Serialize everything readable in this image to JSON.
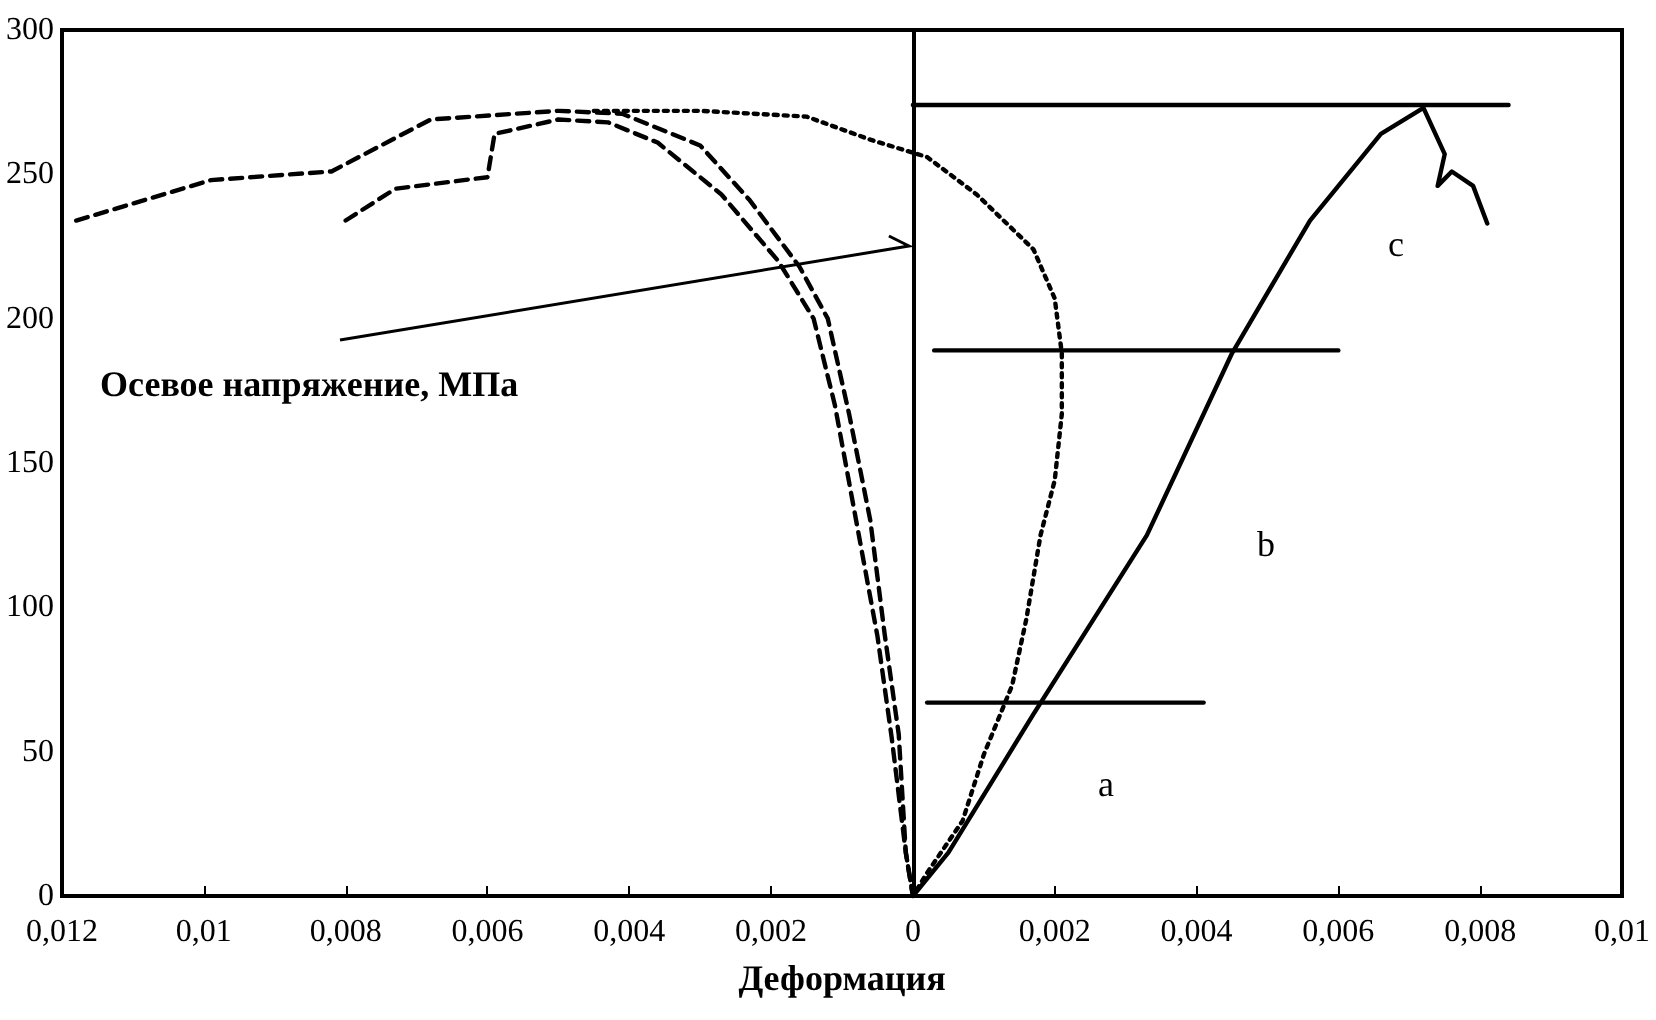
{
  "chart_data": {
    "type": "line",
    "xlabel": "Деформация",
    "ylabel": "Осевое напряжение, МПа",
    "xlim": [
      -0.012,
      0.01
    ],
    "ylim": [
      0,
      300
    ],
    "xticks": [
      {
        "value": -0.012,
        "label": "0,012"
      },
      {
        "value": -0.01,
        "label": "0,01"
      },
      {
        "value": -0.008,
        "label": "0,008"
      },
      {
        "value": -0.006,
        "label": "0,006"
      },
      {
        "value": -0.004,
        "label": "0,004"
      },
      {
        "value": -0.002,
        "label": "0,002"
      },
      0,
      {
        "value": 0.002,
        "label": "0,002"
      },
      {
        "value": 0.004,
        "label": "0,004"
      },
      {
        "value": 0.006,
        "label": "0,006"
      },
      {
        "value": 0.008,
        "label": "0,008"
      },
      {
        "value": 0.01,
        "label": "0,01"
      }
    ],
    "yticks": [
      0,
      50,
      100,
      150,
      200,
      250,
      300
    ],
    "grid": false,
    "marker": "none",
    "series": [
      {
        "color": "#000000",
        "line_style": "dashed",
        "x": [
          -0.0118,
          -0.0099,
          -0.0082,
          -0.0068,
          -0.005,
          -0.0041,
          -0.003,
          -0.0023,
          -0.0016,
          -0.0012,
          -0.0009,
          -0.0006,
          -0.0004,
          -0.0002,
          -0.0001,
          0
        ],
        "values": [
          234,
          248,
          251,
          269,
          272,
          271,
          260,
          241,
          218,
          200,
          167,
          130,
          91,
          56,
          15,
          0
        ]
      },
      {
        "color": "#000000",
        "line_style": "dashed",
        "x": [
          -0.008,
          -0.0073,
          -0.006,
          -0.0059,
          -0.005,
          -0.0043,
          -0.0036,
          -0.0027,
          -0.0019,
          -0.0014,
          -0.0011,
          -0.0008,
          -0.0005,
          -0.0003,
          -0.0001,
          0
        ],
        "values": [
          234,
          245,
          249,
          264,
          269,
          268,
          261,
          243,
          220,
          200,
          170,
          130,
          90,
          55,
          15,
          0
        ]
      },
      {
        "color": "#000000",
        "line_style": "dotted",
        "x": [
          -0.0045,
          -0.003,
          -0.0015,
          -0.0006,
          0.0002,
          0.0009,
          0.0017,
          0.002,
          0.0021,
          0.0021,
          0.002,
          0.0018,
          0.0016,
          0.0014,
          0.001,
          0.0007,
          0.0002,
          0
        ],
        "values": [
          272,
          272,
          270,
          262,
          256,
          243,
          224,
          207,
          188,
          167,
          144,
          125,
          96,
          73,
          49,
          26,
          8,
          0
        ]
      },
      {
        "color": "#000000",
        "line_style": "solid",
        "x": [
          0,
          0.0005,
          0.0017,
          0.0033,
          0.0045,
          0.0056,
          0.0066,
          0.0072,
          0.0075,
          0.0074,
          0.0076,
          0.0079,
          0.0081
        ],
        "values": [
          0,
          15,
          63,
          125,
          188,
          234,
          264,
          273,
          257,
          246,
          251,
          246,
          233
        ]
      },
      {
        "color": "#000000",
        "line_style": "solid",
        "x": [
          0,
          0.0084
        ],
        "values": [
          274,
          274
        ]
      },
      {
        "color": "#000000",
        "line_style": "solid",
        "x": [
          0.0003,
          0.006
        ],
        "values": [
          189,
          189
        ]
      },
      {
        "color": "#000000",
        "line_style": "solid",
        "x": [
          0.0002,
          0.0041
        ],
        "values": [
          67,
          67
        ]
      }
    ],
    "annotations": [
      "a",
      "b",
      "c"
    ]
  }
}
